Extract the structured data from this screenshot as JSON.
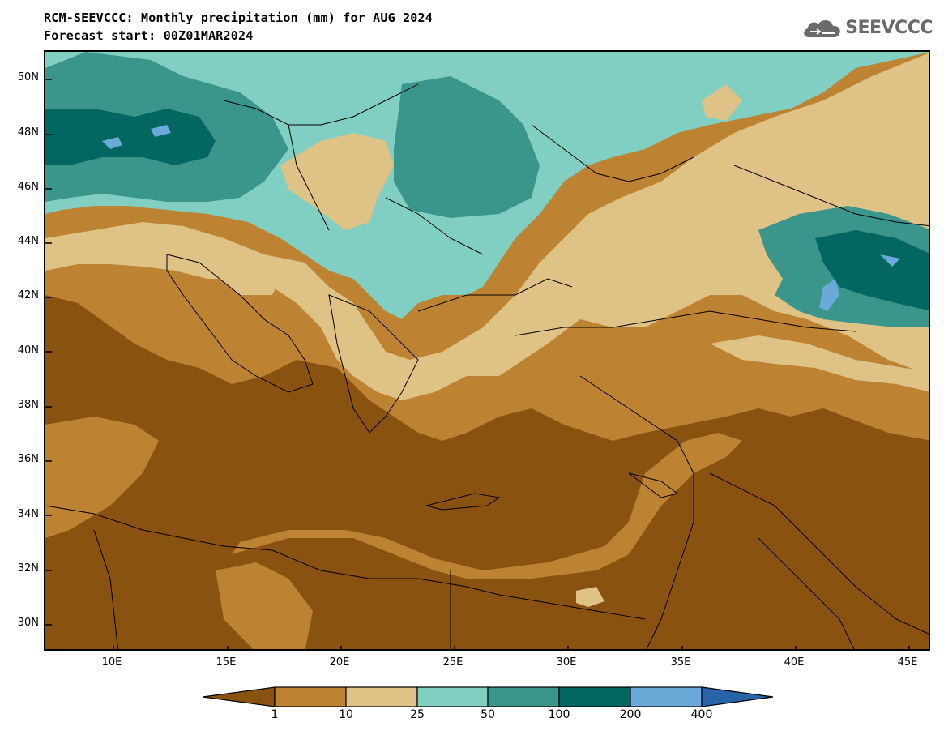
{
  "header": {
    "title_line1": "RCM-SEEVCCC: Monthly precipitation (mm) for AUG 2024",
    "title_line2": "Forecast start: 00Z01MAR2024"
  },
  "logo": {
    "text": "SEEVCCC",
    "icon": "cloud-icon"
  },
  "map": {
    "type": "filled-contour-map",
    "variable": "Monthly precipitation (mm)",
    "lat_ticks": [
      "50N",
      "48N",
      "46N",
      "44N",
      "42N",
      "40N",
      "38N",
      "36N",
      "34N",
      "32N",
      "30N"
    ],
    "lon_ticks": [
      "10E",
      "15E",
      "20E",
      "25E",
      "30E",
      "35E",
      "40E",
      "45E"
    ],
    "extent": {
      "lon_min": 7,
      "lon_max": 46,
      "lat_min": 29,
      "lat_max": 51
    }
  },
  "colorbar": {
    "levels": [
      "1",
      "10",
      "25",
      "50",
      "100",
      "200",
      "400"
    ],
    "colors": [
      "#8a5210",
      "#bd8333",
      "#dfc285",
      "#80cfc2",
      "#3a958b",
      "#036660",
      "#6aa9d8",
      "#2a64a8"
    ]
  }
}
